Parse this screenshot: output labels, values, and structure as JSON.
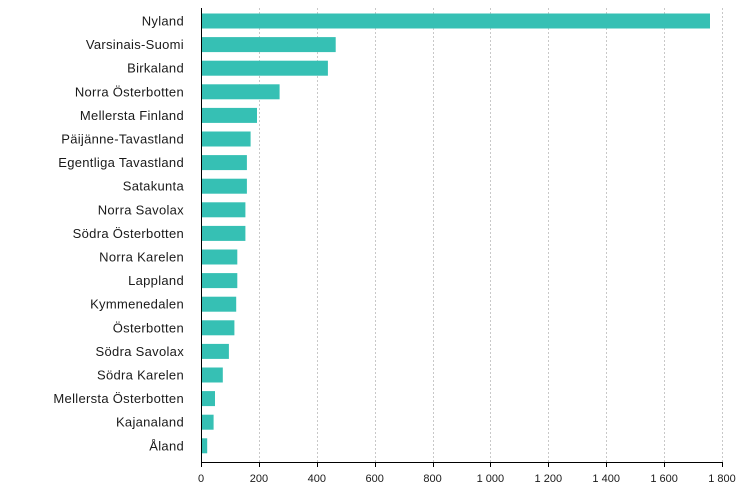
{
  "chart_data": {
    "type": "bar",
    "orientation": "horizontal",
    "title": "",
    "xlabel": "",
    "ylabel": "",
    "categories": [
      "Nyland",
      "Varsinais-Suomi",
      "Birkaland",
      "Norra Österbotten",
      "Mellersta Finland",
      "Päijänne-Tavastland",
      "Egentliga Tavastland",
      "Satakunta",
      "Norra Savolax",
      "Södra Österbotten",
      "Norra Karelen",
      "Lappland",
      "Kymmenedalen",
      "Österbotten",
      "Södra Savolax",
      "Södra Karelen",
      "Mellersta Österbotten",
      "Kajanaland",
      "Åland"
    ],
    "values": [
      1755,
      462,
      435,
      268,
      190,
      168,
      155,
      155,
      150,
      150,
      122,
      122,
      118,
      112,
      93,
      72,
      45,
      40,
      18
    ],
    "xlim": [
      0,
      1800
    ],
    "ticks": [
      0,
      200,
      400,
      600,
      800,
      1000,
      1200,
      1400,
      1600,
      1800
    ],
    "tick_labels": [
      "0",
      "200",
      "400",
      "600",
      "800",
      "1 000",
      "1 200",
      "1 400",
      "1 600",
      "1 800"
    ],
    "grid": true,
    "bar_color": "#36c0b4",
    "grid_color": "#c8c8c8"
  }
}
